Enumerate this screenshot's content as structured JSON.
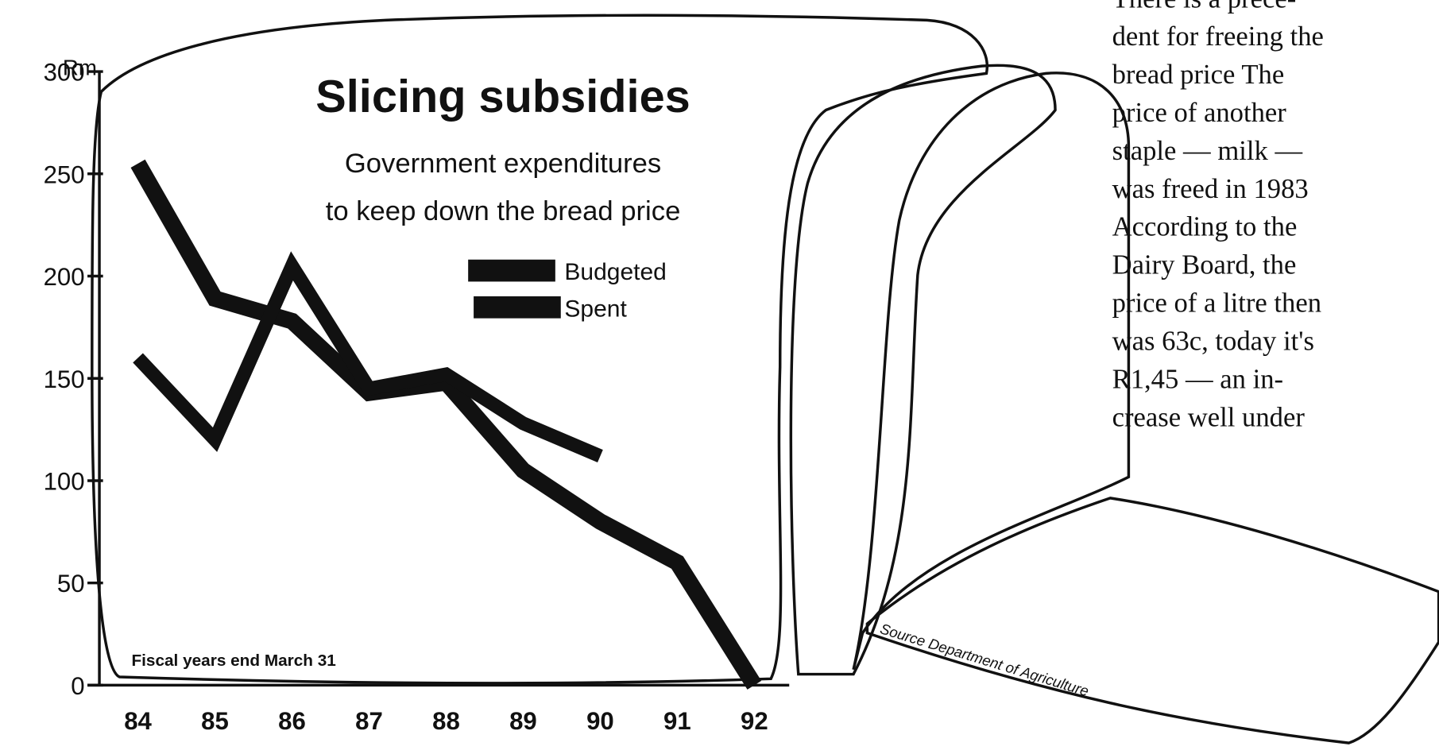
{
  "chart_data": {
    "type": "line",
    "title": "Slicing subsidies",
    "subtitle": [
      "Government expenditures",
      "to keep down the bread price"
    ],
    "y_label": "Rm",
    "note": "Fiscal years end March 31",
    "source": "Source Department of Agriculture",
    "categories": [
      "84",
      "85",
      "86",
      "87",
      "88",
      "89",
      "90",
      "91",
      "92"
    ],
    "series": [
      {
        "name": "Budgeted",
        "color": "#111111",
        "values": [
          255,
          189,
          178,
          143,
          148,
          105,
          80,
          60,
          0
        ]
      },
      {
        "name": "Spent",
        "color": "#111111",
        "values": [
          160,
          120,
          205,
          145,
          152,
          128,
          112,
          null,
          null
        ]
      }
    ],
    "ylim": [
      0,
      300
    ],
    "yticks": [
      0,
      50,
      100,
      150,
      200,
      250,
      300
    ]
  },
  "article": {
    "lines": [
      "There is a prece-",
      "dent for freeing the",
      "bread price The",
      "price of another",
      "staple — milk —",
      "was freed in 1983",
      "According to the",
      "Dairy Board, the",
      "price of a litre then",
      "was 63c, today it's",
      "R1,45 — an in-",
      "crease well under"
    ]
  }
}
